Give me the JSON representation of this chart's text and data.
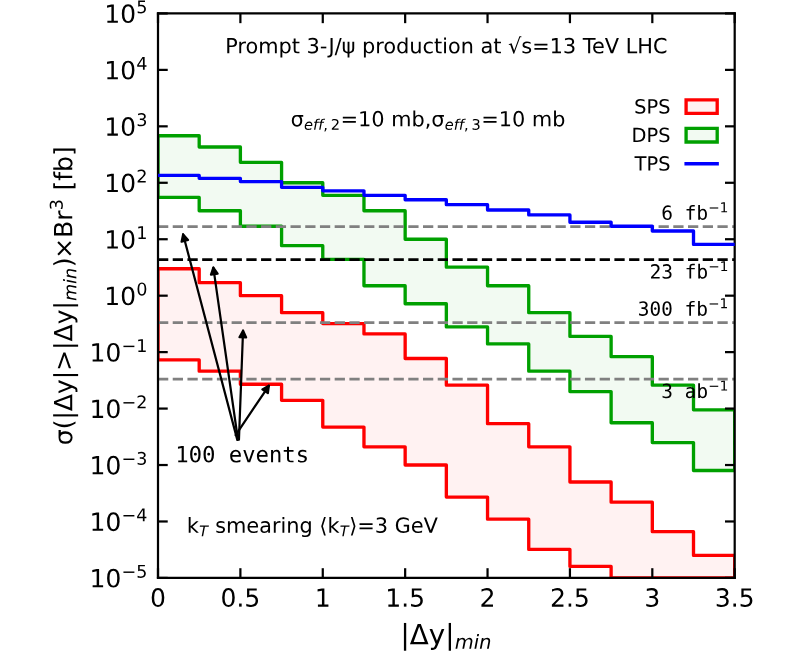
{
  "chart_data": {
    "type": "step",
    "title": "Prompt 3-J/ψ production at √s=13 TeV LHC",
    "xlabel": "|Δy|$_{min}$",
    "ylabel": "σ(|Δy|>|Δy|$_{min}$)×Br$^{3}$ [fb]",
    "x": [
      0,
      0.25,
      0.5,
      0.75,
      1,
      1.25,
      1.5,
      1.75,
      2,
      2.25,
      2.5,
      2.75,
      3,
      3.25,
      3.5
    ],
    "series": [
      {
        "name": "SPS",
        "color": "#ff0000",
        "values": [
          null,
          null,
          null,
          null,
          null,
          null,
          null,
          null,
          null,
          null,
          null,
          null,
          null,
          null,
          null
        ],
        "upper": [
          3.0,
          1.7,
          1.0,
          0.5,
          0.32,
          0.21,
          0.077,
          0.026,
          0.0054,
          0.0021,
          0.0005,
          0.00022,
          6.6e-05,
          2.5e-05,
          2.5e-05
        ],
        "lower": [
          0.073,
          0.046,
          0.027,
          0.014,
          0.0047,
          0.0021,
          0.001,
          0.00027,
          0.00011,
          3.2e-05,
          1.6e-05,
          1e-05,
          1e-05,
          1e-05,
          1e-05
        ]
      },
      {
        "name": "DPS",
        "color": "#00a000",
        "values": [
          null,
          null,
          null,
          null,
          null,
          null,
          null,
          null,
          null,
          null,
          null,
          null,
          null,
          null,
          null
        ],
        "upper": [
          680,
          430,
          230,
          100,
          60,
          32,
          10,
          3.2,
          1.5,
          0.5,
          0.19,
          0.083,
          0.026,
          0.0095,
          0.0095
        ],
        "lower": [
          55,
          32,
          17,
          7.7,
          4.4,
          1.5,
          0.72,
          0.28,
          0.14,
          0.046,
          0.02,
          0.0056,
          0.0025,
          0.0008,
          0.0008
        ]
      },
      {
        "name": "TPS",
        "color": "#0000ff",
        "values": [
          135,
          120,
          105,
          83,
          72,
          60,
          50,
          41,
          33,
          27,
          20,
          17,
          14,
          8.1,
          8.1
        ]
      }
    ],
    "log": "y",
    "xlim": [
      0,
      3.5
    ],
    "ylim": [
      1e-05,
      100000
    ],
    "xticks": [
      0,
      0.5,
      1,
      1.5,
      2,
      2.5,
      3,
      3.5
    ],
    "yticks": [
      {
        "value": 1e-05,
        "label": "10$^{−5}$"
      },
      {
        "value": 0.0001,
        "label": "10$^{−4}$"
      },
      {
        "value": 0.001,
        "label": "10$^{−3}$"
      },
      {
        "value": 0.01,
        "label": "10$^{−2}$"
      },
      {
        "value": 0.1,
        "label": "10$^{−1}$"
      },
      {
        "value": 1,
        "label": "10$^{0}$"
      },
      {
        "value": 10,
        "label": "10$^{1}$"
      },
      {
        "value": 100,
        "label": "10$^{2}$"
      },
      {
        "value": 1000,
        "label": "10$^{3}$"
      },
      {
        "value": 10000,
        "label": "10$^{4}$"
      },
      {
        "value": 100000,
        "label": "10$^{5}$"
      }
    ],
    "ref_lines": [
      {
        "axis": "y",
        "value": 16.7,
        "label": "6 fb$^{−1}$",
        "color": "#808080",
        "line_style": "dashed"
      },
      {
        "axis": "y",
        "value": 4.35,
        "label": "23 fb$^{−1}$",
        "color": "#000000",
        "line_style": "dashed"
      },
      {
        "axis": "y",
        "value": 0.333,
        "label": "300 fb$^{−1}$",
        "color": "#808080",
        "line_style": "dashed"
      },
      {
        "axis": "y",
        "value": 0.0333,
        "label": "3 ab$^{−1}$",
        "color": "#808080",
        "line_style": "dashed"
      }
    ],
    "annotations": [
      "σ$_{eff,2}$=10 mb,σ$_{eff,3}$=10 mb",
      {
        "text": "100 events",
        "x": 0.7,
        "y": 0.0333
      },
      "k$_{T}$ smearing ⟨k$_{T}$⟩=3 GeV"
    ],
    "legend": "top right",
    "grid": false
  }
}
